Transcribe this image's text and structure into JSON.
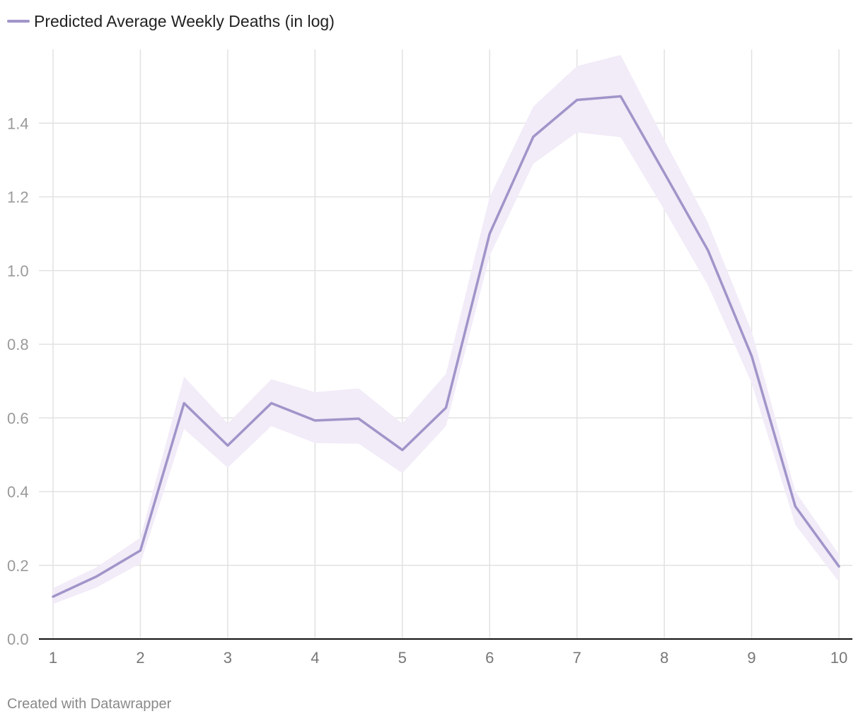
{
  "legend": {
    "label": "Predicted Average Weekly Deaths (in log)"
  },
  "footer": {
    "credit": "Created with Datawrapper"
  },
  "colors": {
    "line": "#a095c9",
    "band": "#f2ebf8",
    "grid": "#e2e2e2",
    "axis": "#111111"
  },
  "chart_data": {
    "type": "line",
    "title": "",
    "xlabel": "",
    "ylabel": "",
    "xlim": [
      1,
      10
    ],
    "ylim": [
      0,
      1.6
    ],
    "grid": true,
    "legend_position": "top-left",
    "x_ticks": [
      1,
      2,
      3,
      4,
      5,
      6,
      7,
      8,
      9,
      10
    ],
    "x_tick_labels": [
      "1",
      "2",
      "3",
      "4",
      "5",
      "6",
      "7",
      "8",
      "9",
      "10"
    ],
    "y_ticks": [
      0,
      0.2,
      0.4,
      0.6,
      0.8,
      1.0,
      1.2,
      1.4
    ],
    "y_tick_labels": [
      "0.0",
      "0.2",
      "0.4",
      "0.6",
      "0.8",
      "1.0",
      "1.2",
      "1.4"
    ],
    "series": [
      {
        "name": "Predicted Average Weekly Deaths (in log)",
        "x": [
          1,
          1.5,
          2,
          2.5,
          3,
          3.5,
          4,
          4.5,
          5,
          5.5,
          6,
          6.5,
          7,
          7.5,
          8,
          8.5,
          9,
          9.5,
          10
        ],
        "values": [
          0.115,
          0.17,
          0.24,
          0.64,
          0.525,
          0.64,
          0.593,
          0.598,
          0.513,
          0.628,
          1.1,
          1.363,
          1.463,
          1.473,
          1.265,
          1.055,
          0.768,
          0.36,
          0.197
        ],
        "lower": [
          0.095,
          0.14,
          0.205,
          0.57,
          0.465,
          0.578,
          0.532,
          0.53,
          0.45,
          0.578,
          1.04,
          1.29,
          1.375,
          1.362,
          1.165,
          0.96,
          0.695,
          0.31,
          0.155
        ],
        "upper": [
          0.138,
          0.195,
          0.275,
          0.712,
          0.585,
          0.705,
          0.67,
          0.68,
          0.585,
          0.72,
          1.2,
          1.445,
          1.555,
          1.585,
          1.355,
          1.13,
          0.835,
          0.4,
          0.23
        ]
      }
    ]
  }
}
